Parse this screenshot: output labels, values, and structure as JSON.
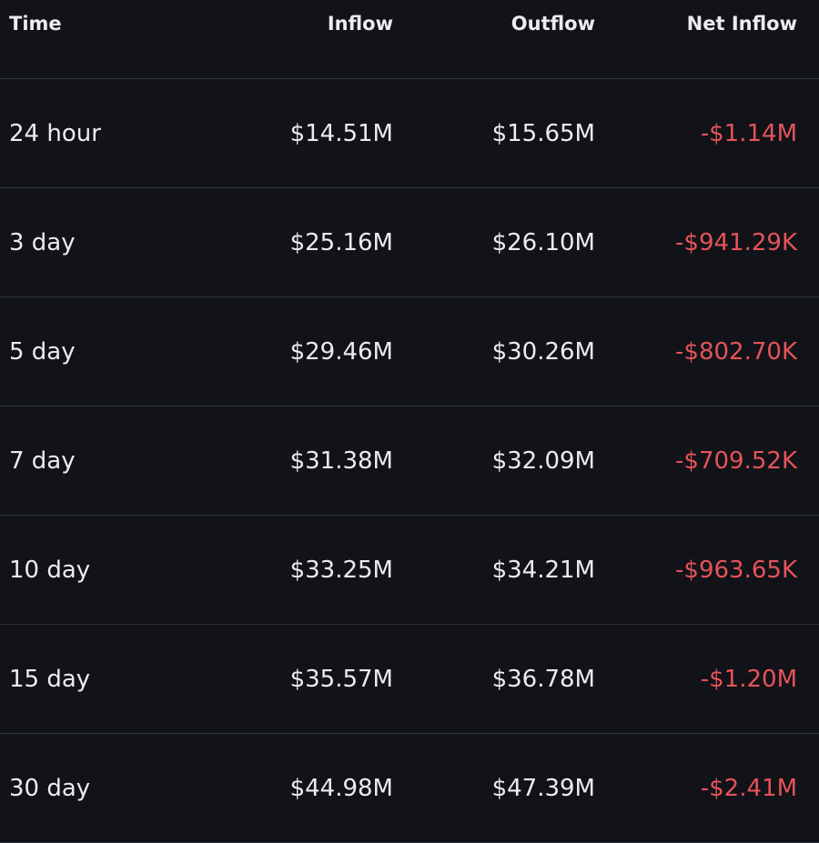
{
  "table": {
    "header": [
      "Time",
      "Inflow",
      "Outflow",
      "Net Inflow"
    ],
    "rows": [
      [
        "24 hour",
        "$14.51M",
        "$15.65M",
        "-$1.14M"
      ],
      [
        "3 day",
        "$25.16M",
        "$26.10M",
        "-$941.29K"
      ],
      [
        "5 day",
        "$29.46M",
        "$30.26M",
        "-$802.70K"
      ],
      [
        "7 day",
        "$31.38M",
        "$32.09M",
        "-$709.52K"
      ],
      [
        "10 day",
        "$33.25M",
        "$34.21M",
        "-$963.65K"
      ],
      [
        "15 day",
        "$35.57M",
        "$36.78M",
        "-$1.20M"
      ],
      [
        "30 day",
        "$44.98M",
        "$47.39M",
        "-$2.41M"
      ]
    ]
  }
}
